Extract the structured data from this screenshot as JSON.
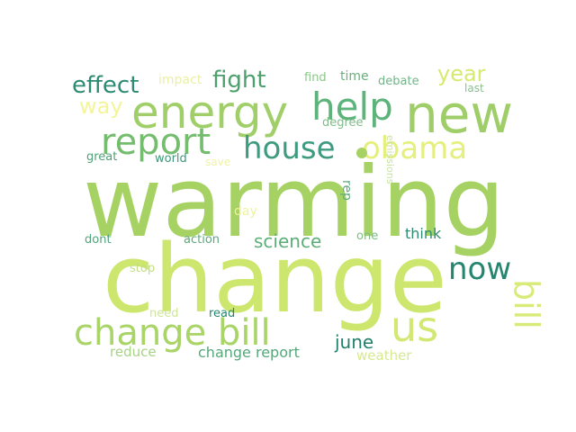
{
  "word_cloud": {
    "words": [
      {
        "text": "warming",
        "color": "#a6d264"
      },
      {
        "text": "change",
        "color": "#cde66e"
      },
      {
        "text": "energy",
        "color": "#a0cf6a"
      },
      {
        "text": "new",
        "color": "#9fce68"
      },
      {
        "text": "help",
        "color": "#5db47a"
      },
      {
        "text": "report",
        "color": "#74bd6e"
      },
      {
        "text": "house",
        "color": "#3e9b7f"
      },
      {
        "text": "obama",
        "color": "#e4ef7c"
      },
      {
        "text": "now",
        "color": "#24866f"
      },
      {
        "text": "change bill",
        "color": "#a9d468"
      },
      {
        "text": "us",
        "color": "#d2e873"
      },
      {
        "text": "bill",
        "color": "#d8eb79"
      },
      {
        "text": "effect",
        "color": "#2d8b73"
      },
      {
        "text": "fight",
        "color": "#4e9f6e"
      },
      {
        "text": "year",
        "color": "#d7ea70"
      },
      {
        "text": "way",
        "color": "#f2f59a"
      },
      {
        "text": "impact",
        "color": "#e9f0a5"
      },
      {
        "text": "find",
        "color": "#8cc78a"
      },
      {
        "text": "time",
        "color": "#6bb07d"
      },
      {
        "text": "debate",
        "color": "#72b48a"
      },
      {
        "text": "last",
        "color": "#8bbf92"
      },
      {
        "text": "degree",
        "color": "#7fbb89"
      },
      {
        "text": "science",
        "color": "#5cae78"
      },
      {
        "text": "june",
        "color": "#23806c"
      },
      {
        "text": "great",
        "color": "#4fa077"
      },
      {
        "text": "world",
        "color": "#3d9878"
      },
      {
        "text": "save",
        "color": "#f1f3a6"
      },
      {
        "text": "day",
        "color": "#eef39e"
      },
      {
        "text": "dont",
        "color": "#52a27b"
      },
      {
        "text": "action",
        "color": "#5ea67a"
      },
      {
        "text": "one",
        "color": "#7dbc84"
      },
      {
        "text": "think",
        "color": "#2d8c74"
      },
      {
        "text": "stop",
        "color": "#c2df7e"
      },
      {
        "text": "need",
        "color": "#cfe59a"
      },
      {
        "text": "read",
        "color": "#258571"
      },
      {
        "text": "reduce",
        "color": "#a8d287"
      },
      {
        "text": "change report",
        "color": "#56a77a"
      },
      {
        "text": "weather",
        "color": "#d6ea8f"
      },
      {
        "text": "rep",
        "color": "#5fab7c"
      },
      {
        "text": "emissions",
        "color": "#c8e3a0"
      }
    ]
  }
}
